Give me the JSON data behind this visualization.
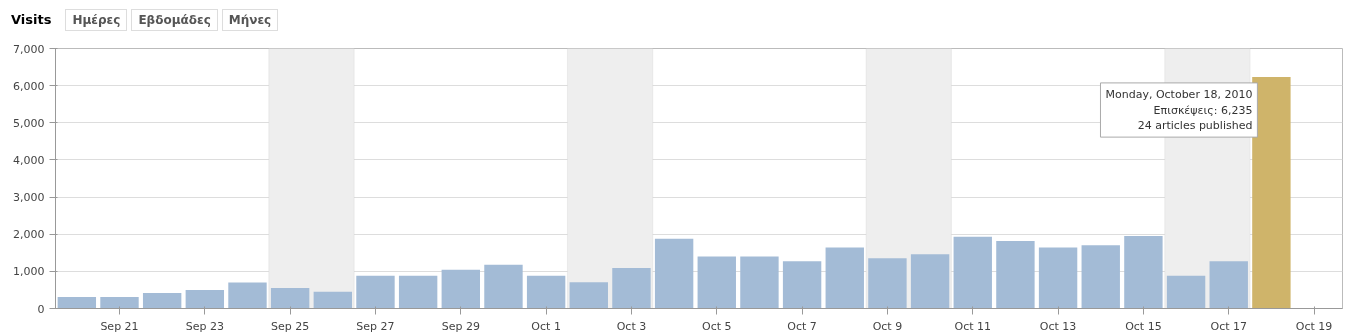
{
  "chart_data": {
    "type": "bar",
    "title": "Visits",
    "annotations": [
      "Ημέρες",
      "Εβδομάδες",
      "Μήνες",
      {
        "text": "Monday, October 18, 2010\nΕπισκέψεις: 6,235\n24 articles published",
        "x": "2010-10-18",
        "y": 6235
      }
    ],
    "x": [
      "2010-09-20",
      "2010-09-21",
      "2010-09-22",
      "2010-09-23",
      "2010-09-24",
      "2010-09-25",
      "2010-09-26",
      "2010-09-27",
      "2010-09-28",
      "2010-09-29",
      "2010-09-30",
      "2010-10-01",
      "2010-10-02",
      "2010-10-03",
      "2010-10-04",
      "2010-10-05",
      "2010-10-06",
      "2010-10-07",
      "2010-10-08",
      "2010-10-09",
      "2010-10-10",
      "2010-10-11",
      "2010-10-12",
      "2010-10-13",
      "2010-10-14",
      "2010-10-15",
      "2010-10-16",
      "2010-10-17",
      "2010-10-18"
    ],
    "values": [
      310,
      310,
      420,
      500,
      700,
      550,
      450,
      880,
      880,
      1040,
      1180,
      880,
      710,
      1090,
      1880,
      1400,
      1400,
      1270,
      1640,
      1350,
      1460,
      1930,
      1820,
      1640,
      1700,
      1950,
      880,
      1270,
      6235
    ],
    "colors": [
      "#a3bbd6",
      "#a3bbd6",
      "#a3bbd6",
      "#a3bbd6",
      "#a3bbd6",
      "#a3bbd6",
      "#a3bbd6",
      "#a3bbd6",
      "#a3bbd6",
      "#a3bbd6",
      "#a3bbd6",
      "#a3bbd6",
      "#a3bbd6",
      "#a3bbd6",
      "#a3bbd6",
      "#a3bbd6",
      "#a3bbd6",
      "#a3bbd6",
      "#a3bbd6",
      "#a3bbd6",
      "#a3bbd6",
      "#a3bbd6",
      "#a3bbd6",
      "#a3bbd6",
      "#a3bbd6",
      "#a3bbd6",
      "#a3bbd6",
      "#a3bbd6",
      "#cfb46a"
    ],
    "bands": [
      {
        "axis": "x",
        "from": "2010-09-24T12:00",
        "to": "2010-09-26T12:00",
        "color": "#eeeeee"
      },
      {
        "axis": "x",
        "from": "2010-10-01T12:00",
        "to": "2010-10-03T12:00",
        "color": "#eeeeee"
      },
      {
        "axis": "x",
        "from": "2010-10-08T12:00",
        "to": "2010-10-10T12:00",
        "color": "#eeeeee"
      },
      {
        "axis": "x",
        "from": "2010-10-15T12:00",
        "to": "2010-10-17T12:00",
        "color": "#eeeeee"
      }
    ],
    "xlim": [
      "2010-09-19T12:00",
      "2010-10-19T16:00"
    ],
    "xticks": [
      {
        "value": "2010-09-21",
        "label": "Sep 21"
      },
      {
        "value": "2010-09-23",
        "label": "Sep 23"
      },
      {
        "value": "2010-09-25",
        "label": "Sep 25"
      },
      {
        "value": "2010-09-27",
        "label": "Sep 27"
      },
      {
        "value": "2010-09-29",
        "label": "Sep 29"
      },
      {
        "value": "2010-10-01",
        "label": "Oct 1"
      },
      {
        "value": "2010-10-03",
        "label": "Oct 3"
      },
      {
        "value": "2010-10-05",
        "label": "Oct 5"
      },
      {
        "value": "2010-10-07",
        "label": "Oct 7"
      },
      {
        "value": "2010-10-09",
        "label": "Oct 9"
      },
      {
        "value": "2010-10-11",
        "label": "Oct 11"
      },
      {
        "value": "2010-10-13",
        "label": "Oct 13"
      },
      {
        "value": "2010-10-15",
        "label": "Oct 15"
      },
      {
        "value": "2010-10-17",
        "label": "Oct 17"
      },
      {
        "value": "2010-10-19",
        "label": "Oct 19"
      }
    ],
    "ylim": [
      0,
      7000
    ],
    "yticks": [
      0,
      {
        "value": 1000,
        "label": "1,000"
      },
      {
        "value": 2000,
        "label": "2,000"
      },
      {
        "value": 3000,
        "label": "3,000"
      },
      {
        "value": 4000,
        "label": "4,000"
      },
      {
        "value": 5000,
        "label": "5,000"
      },
      {
        "value": 6000,
        "label": "6,000"
      },
      {
        "value": 7000,
        "label": "7,000"
      }
    ],
    "grid": "y"
  }
}
